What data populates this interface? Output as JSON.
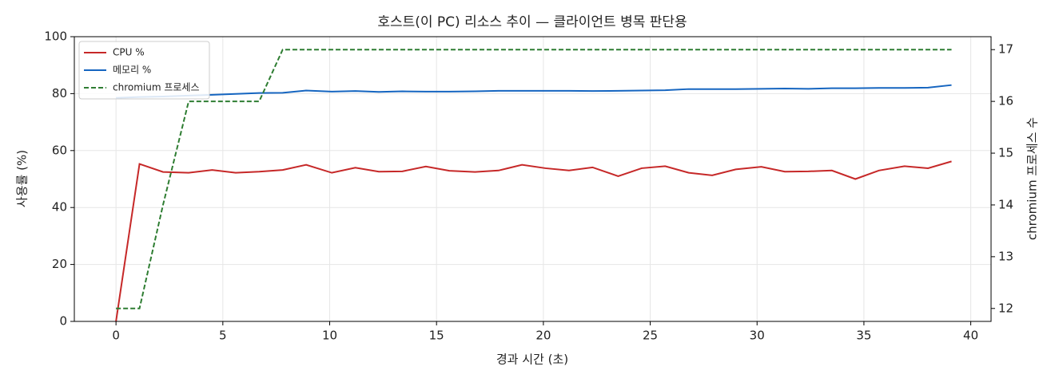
{
  "chart_data": {
    "type": "line",
    "title": "호스트(이 PC) 리소스 추이 — 클라이언트 병목 판단용",
    "x_label": "경과 시간 (초)",
    "y_label": "사용률 (%)",
    "y2_label": "chromium 프로세스 수",
    "x": [
      0,
      1.1,
      2.2,
      3.4,
      4.5,
      5.6,
      6.7,
      7.8,
      8.9,
      10.1,
      11.2,
      12.3,
      13.4,
      14.5,
      15.6,
      16.8,
      17.9,
      19.0,
      20.1,
      21.2,
      22.3,
      23.5,
      24.6,
      25.7,
      26.8,
      27.9,
      29.0,
      30.2,
      31.3,
      32.4,
      33.5,
      34.6,
      35.7,
      36.9,
      38.0,
      39.1
    ],
    "series": [
      {
        "name": "CPU %",
        "color": "#c62828",
        "dashed": false,
        "axis": "y",
        "values": [
          0,
          55.3,
          52.5,
          52.2,
          53.2,
          52.2,
          52.6,
          53.2,
          55,
          52.2,
          54,
          52.6,
          52.7,
          54.4,
          52.9,
          52.5,
          53,
          55,
          53.8,
          53,
          54.1,
          51,
          53.8,
          54.5,
          52.2,
          51.3,
          53.4,
          54.3,
          52.6,
          52.7,
          53,
          50,
          53,
          54.5,
          53.8,
          56.2
        ]
      },
      {
        "name": "메모리 %",
        "color": "#1565c0",
        "dashed": false,
        "axis": "y",
        "values": [
          78.5,
          78.8,
          79,
          79.3,
          79.6,
          79.9,
          80.2,
          80.3,
          81.1,
          80.7,
          80.9,
          80.6,
          80.8,
          80.7,
          80.7,
          80.8,
          81,
          81,
          81,
          81,
          80.9,
          81,
          81.1,
          81.2,
          81.6,
          81.6,
          81.6,
          81.7,
          81.8,
          81.7,
          81.9,
          81.9,
          82,
          82,
          82.1,
          83
        ]
      },
      {
        "name": "chromium 프로세스",
        "color": "#2e7d32",
        "dashed": true,
        "axis": "y2",
        "values": [
          12,
          12,
          14,
          16,
          16,
          16,
          16,
          17,
          17,
          17,
          17,
          17,
          17,
          17,
          17,
          17,
          17,
          17,
          17,
          17,
          17,
          17,
          17,
          17,
          17,
          17,
          17,
          17,
          17,
          17,
          17,
          17,
          17,
          17,
          17,
          17
        ]
      }
    ],
    "xlim": [
      -1.95,
      40.95
    ],
    "xticks": [
      0,
      5,
      10,
      15,
      20,
      25,
      30,
      35,
      40
    ],
    "ylim": [
      0,
      100
    ],
    "yticks": [
      0,
      20,
      40,
      60,
      80,
      100
    ],
    "y2lim": [
      11.75,
      17.25
    ],
    "y2ticks": [
      12,
      13,
      14,
      15,
      16,
      17
    ],
    "grid": true,
    "legend": "upper-left"
  }
}
